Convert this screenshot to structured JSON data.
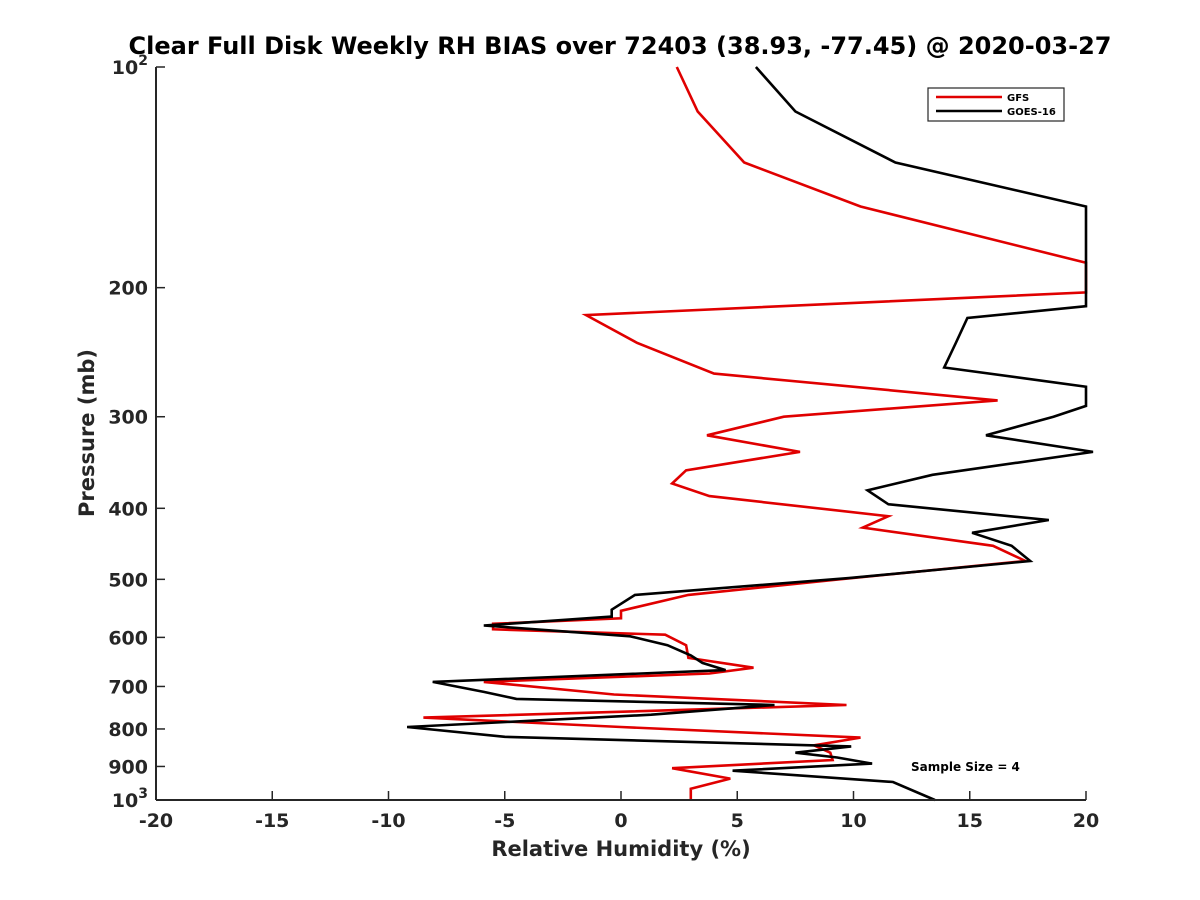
{
  "chart_data": {
    "type": "line",
    "title": "Clear Full Disk Weekly RH BIAS over 72403 (38.93, -77.45) @ 2020-03-27",
    "xlabel": "Relative Humidity (%)",
    "ylabel": "Pressure (mb)",
    "xlim": [
      -20,
      20
    ],
    "ylim": [
      100,
      1000
    ],
    "yscale": "log",
    "y_reversed": true,
    "grid": false,
    "legend_position": "top-right",
    "x_ticks": [
      -20,
      -15,
      -10,
      -5,
      0,
      5,
      10,
      15,
      20
    ],
    "x_tick_labels": [
      "-20",
      "-15",
      "-10",
      "-5",
      "0",
      "5",
      "10",
      "15",
      "20"
    ],
    "y_ticks": [
      100,
      200,
      300,
      400,
      500,
      600,
      700,
      800,
      900,
      1000
    ],
    "y_tick_labels": [
      {
        "base": "10",
        "sup": "2"
      },
      {
        "base": "200",
        "sup": ""
      },
      {
        "base": "300",
        "sup": ""
      },
      {
        "base": "400",
        "sup": ""
      },
      {
        "base": "500",
        "sup": ""
      },
      {
        "base": "600",
        "sup": ""
      },
      {
        "base": "700",
        "sup": ""
      },
      {
        "base": "800",
        "sup": ""
      },
      {
        "base": "900",
        "sup": ""
      },
      {
        "base": "10",
        "sup": "3"
      }
    ],
    "annotation": "Sample Size = 4",
    "series": [
      {
        "name": "GFS",
        "color": "#e00000",
        "points": [
          [
            2.4,
            100
          ],
          [
            3.3,
            115
          ],
          [
            5.3,
            135
          ],
          [
            10.3,
            155
          ],
          [
            20.0,
            185
          ],
          [
            20.0,
            203
          ],
          [
            -1.5,
            218
          ],
          [
            0.7,
            238
          ],
          [
            4.0,
            262
          ],
          [
            16.2,
            285
          ],
          [
            7.0,
            300
          ],
          [
            3.7,
            318
          ],
          [
            7.7,
            335
          ],
          [
            2.8,
            355
          ],
          [
            2.2,
            370
          ],
          [
            3.8,
            385
          ],
          [
            11.5,
            410
          ],
          [
            10.4,
            425
          ],
          [
            16.0,
            450
          ],
          [
            17.4,
            472
          ],
          [
            9.4,
            500
          ],
          [
            2.9,
            525
          ],
          [
            0.0,
            552
          ],
          [
            0.0,
            565
          ],
          [
            -5.5,
            575
          ],
          [
            -5.5,
            585
          ],
          [
            1.9,
            595
          ],
          [
            2.8,
            615
          ],
          [
            2.9,
            640
          ],
          [
            5.7,
            660
          ],
          [
            3.8,
            672
          ],
          [
            -5.9,
            690
          ],
          [
            -0.3,
            718
          ],
          [
            9.7,
            742
          ],
          [
            -8.5,
            772
          ],
          [
            0.0,
            795
          ],
          [
            10.3,
            822
          ],
          [
            8.3,
            842
          ],
          [
            9.0,
            862
          ],
          [
            9.1,
            882
          ],
          [
            2.2,
            905
          ],
          [
            4.7,
            935
          ],
          [
            3.0,
            965
          ],
          [
            3.0,
            1000
          ]
        ]
      },
      {
        "name": "GOES-16",
        "color": "#000000",
        "points": [
          [
            5.8,
            100
          ],
          [
            7.5,
            115
          ],
          [
            11.8,
            135
          ],
          [
            20.0,
            155
          ],
          [
            20.0,
            212
          ],
          [
            14.9,
            220
          ],
          [
            14.4,
            238
          ],
          [
            13.9,
            257
          ],
          [
            20.0,
            273
          ],
          [
            20.0,
            290
          ],
          [
            18.6,
            300
          ],
          [
            15.7,
            318
          ],
          [
            20.3,
            335
          ],
          [
            13.4,
            360
          ],
          [
            10.6,
            378
          ],
          [
            11.5,
            395
          ],
          [
            18.4,
            415
          ],
          [
            15.1,
            432
          ],
          [
            16.8,
            450
          ],
          [
            17.6,
            472
          ],
          [
            9.8,
            498
          ],
          [
            0.6,
            525
          ],
          [
            -0.4,
            550
          ],
          [
            -0.4,
            562
          ],
          [
            -5.9,
            578
          ],
          [
            0.4,
            598
          ],
          [
            2.0,
            615
          ],
          [
            3.0,
            635
          ],
          [
            3.5,
            650
          ],
          [
            4.5,
            665
          ],
          [
            -8.1,
            690
          ],
          [
            -5.9,
            712
          ],
          [
            -4.5,
            728
          ],
          [
            6.6,
            742
          ],
          [
            1.3,
            765
          ],
          [
            -9.2,
            795
          ],
          [
            -5.0,
            820
          ],
          [
            9.9,
            845
          ],
          [
            7.5,
            862
          ],
          [
            9.3,
            875
          ],
          [
            10.8,
            892
          ],
          [
            4.8,
            912
          ],
          [
            11.7,
            945
          ],
          [
            13.5,
            1000
          ]
        ]
      }
    ]
  }
}
